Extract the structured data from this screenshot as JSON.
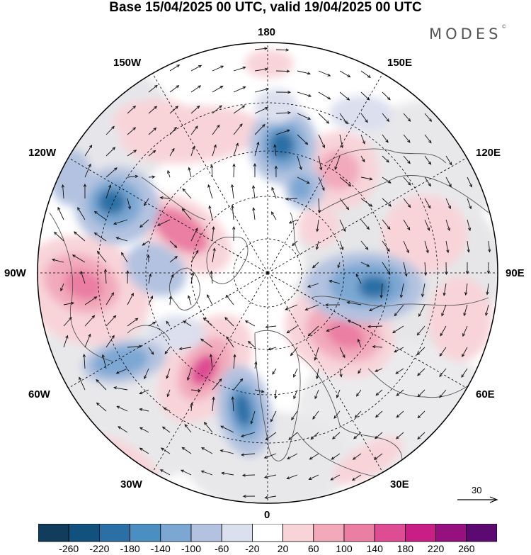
{
  "title": "Base 15/04/2025 00 UTC, valid 19/04/2025 00 UTC",
  "brand": "MODES",
  "brand_mark": "©",
  "map": {
    "projection": "north-polar-stereographic",
    "longitude_labels": [
      {
        "id": "lon-180",
        "text": "180"
      },
      {
        "id": "lon-150w",
        "text": "150W"
      },
      {
        "id": "lon-150e",
        "text": "150E"
      },
      {
        "id": "lon-120w",
        "text": "120W"
      },
      {
        "id": "lon-120e",
        "text": "120E"
      },
      {
        "id": "lon-90w",
        "text": "90W"
      },
      {
        "id": "lon-90e",
        "text": "90E"
      },
      {
        "id": "lon-60w",
        "text": "60W"
      },
      {
        "id": "lon-60e",
        "text": "60E"
      },
      {
        "id": "lon-30w",
        "text": "30W"
      },
      {
        "id": "lon-30e",
        "text": "30E"
      },
      {
        "id": "lon-0",
        "text": "0"
      }
    ],
    "reference_vector": {
      "value": "30",
      "icon": "arrow-right-icon"
    }
  },
  "colorbar": {
    "ticks": [
      "-260",
      "-220",
      "-180",
      "-140",
      "-100",
      "-60",
      "-20",
      "20",
      "60",
      "100",
      "140",
      "180",
      "220",
      "260"
    ],
    "colors": [
      "#113c5c",
      "#12507e",
      "#2a6fa6",
      "#4a8ec2",
      "#7ca7d3",
      "#b3c2e0",
      "#dcdfee",
      "#ffffff",
      "#f8d4d9",
      "#f2aabb",
      "#ea7ea3",
      "#de4c93",
      "#c81e86",
      "#96117f",
      "#5c0a72"
    ]
  }
}
